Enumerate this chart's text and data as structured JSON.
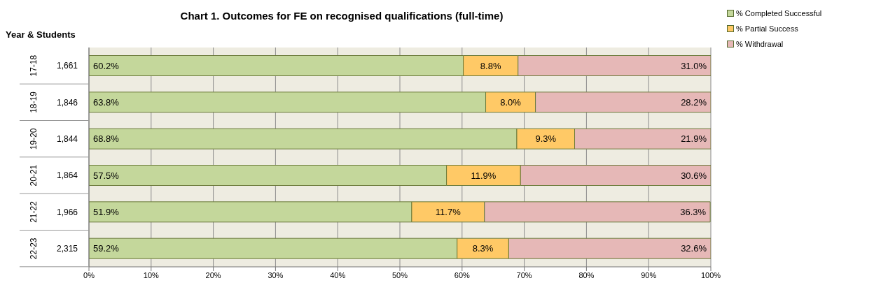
{
  "chart_data": {
    "type": "bar",
    "orientation": "horizontal",
    "stacked": true,
    "title": "Chart 1. Outcomes for FE on recognised qualifications (full-time)",
    "ylabel": "Year & Students",
    "categories": [
      "17-18",
      "18-19",
      "19-20",
      "20-21",
      "21-22",
      "22-23"
    ],
    "series": [
      {
        "name": "% Completed Successful",
        "color": "#c4d79b",
        "values": [
          60.2,
          63.8,
          68.8,
          57.5,
          51.9,
          59.2
        ],
        "value_labels": [
          "60.2%",
          "63.8%",
          "68.8%",
          "57.5%",
          "51.9%",
          "59.2%"
        ]
      },
      {
        "name": "% Partial Success",
        "color": "#ffc966",
        "values": [
          8.8,
          8.0,
          9.3,
          11.9,
          11.7,
          8.3
        ],
        "value_labels": [
          "8.8%",
          "8.0%",
          "9.3%",
          "11.9%",
          "11.7%",
          "8.3%"
        ]
      },
      {
        "name": "% Withdrawal",
        "color": "#e6b8b7",
        "values": [
          31.0,
          28.2,
          21.9,
          30.6,
          36.3,
          32.6
        ],
        "value_labels": [
          "31.0%",
          "28.2%",
          "21.9%",
          "30.6%",
          "36.3%",
          "32.6%"
        ]
      }
    ],
    "annotations": [
      "1,661",
      "1,846",
      "1,844",
      "1,864",
      "1,966",
      "2,315"
    ],
    "xlim": [
      0,
      100
    ],
    "xticks": [
      {
        "value": 0,
        "label": "0%"
      },
      {
        "value": 10,
        "label": "10%"
      },
      {
        "value": 20,
        "label": "20%"
      },
      {
        "value": 30,
        "label": "30%"
      },
      {
        "value": 40,
        "label": "40%"
      },
      {
        "value": 50,
        "label": "50%"
      },
      {
        "value": 60,
        "label": "60%"
      },
      {
        "value": 70,
        "label": "70%"
      },
      {
        "value": 80,
        "label": "80%"
      },
      {
        "value": 90,
        "label": "90%"
      },
      {
        "value": 100,
        "label": "100%"
      }
    ],
    "grid": "x",
    "legend": "top right"
  }
}
